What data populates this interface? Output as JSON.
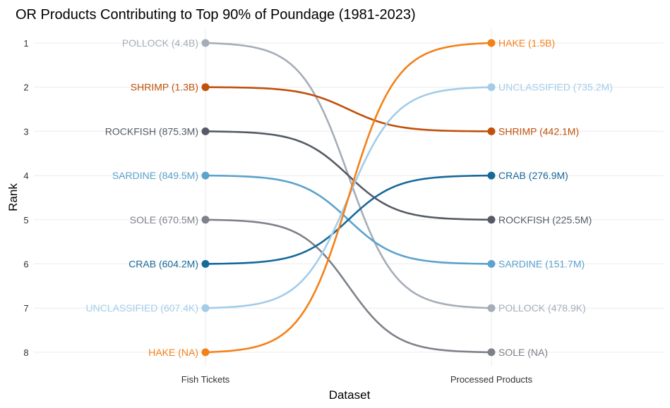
{
  "chart_data": {
    "type": "line",
    "subtype": "bump",
    "title": "OR Products Contributing to Top 90% of Poundage (1981-2023)",
    "xlabel": "Dataset",
    "ylabel": "Rank",
    "categories": [
      "Fish Tickets",
      "Processed Products"
    ],
    "ranks": [
      1,
      2,
      3,
      4,
      5,
      6,
      7,
      8
    ],
    "y_reversed": true,
    "grid": true,
    "series": [
      {
        "name": "POLLOCK",
        "ranks": [
          1,
          7
        ],
        "labels": [
          "POLLOCK (4.4B)",
          "POLLOCK (478.9K)"
        ],
        "color": "#a5adb9"
      },
      {
        "name": "SHRIMP",
        "ranks": [
          2,
          3
        ],
        "labels": [
          "SHRIMP (1.3B)",
          "SHRIMP (442.1M)"
        ],
        "color": "#c0500a"
      },
      {
        "name": "ROCKFISH",
        "ranks": [
          3,
          5
        ],
        "labels": [
          "ROCKFISH (875.3M)",
          "ROCKFISH (225.5M)"
        ],
        "color": "#555b66"
      },
      {
        "name": "SARDINE",
        "ranks": [
          4,
          6
        ],
        "labels": [
          "SARDINE (849.5M)",
          "SARDINE (151.7M)"
        ],
        "color": "#5ba2cc"
      },
      {
        "name": "SOLE",
        "ranks": [
          5,
          8
        ],
        "labels": [
          "SOLE (670.5M)",
          "SOLE (NA)"
        ],
        "color": "#7d818a"
      },
      {
        "name": "CRAB",
        "ranks": [
          6,
          4
        ],
        "labels": [
          "CRAB (604.2M)",
          "CRAB (276.9M)"
        ],
        "color": "#17699a"
      },
      {
        "name": "UNCLASSIFIED",
        "ranks": [
          7,
          2
        ],
        "labels": [
          "UNCLASSIFIED (607.4K)",
          "UNCLASSIFIED (735.2M)"
        ],
        "color": "#a3cce9"
      },
      {
        "name": "HAKE",
        "ranks": [
          8,
          1
        ],
        "labels": [
          "HAKE (NA)",
          "HAKE (1.5B)"
        ],
        "color": "#f48017"
      }
    ]
  }
}
